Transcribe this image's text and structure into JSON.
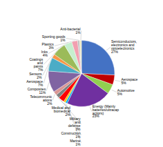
{
  "chart_data": {
    "type": "pie",
    "categories": [
      "Semiconductors,\nelectronics and\noptoelectronics\n27%",
      "Aerospace\n5%",
      "Automotive\n5%",
      "Energy (Mainly\nbatteries/ultracap\nacitors)\n23%",
      "Marine\n1%",
      "Construction\n1%",
      "Military\nand\ndefense\n3%",
      "Medical and\nbiomedical\n2%",
      "Telecommunic\nations\n2%",
      "Composites\n11%",
      "Aerospace\n7%",
      "Sensors\n2%",
      "Coatings\nand\npaints\n7%",
      "Inks\n4%",
      "Plastics\n3%",
      "Sporting goods\n1%",
      "Anti-bacterial\n1%"
    ],
    "values": [
      27,
      5,
      5,
      23,
      1,
      1,
      3,
      2,
      2,
      11,
      7,
      2,
      7,
      4,
      3,
      1,
      1
    ],
    "colors": [
      "#4472C4",
      "#c00000",
      "#92d050",
      "#7030a0",
      "#00b0f0",
      "#ffc000",
      "#ff0000",
      "#808080",
      "#d99694",
      "#8064a2",
      "#4bacc6",
      "#f79646",
      "#9bbb59",
      "#c6efce",
      "#f2a0b0",
      "#bfbfbf",
      "#ebe9c2"
    ]
  }
}
